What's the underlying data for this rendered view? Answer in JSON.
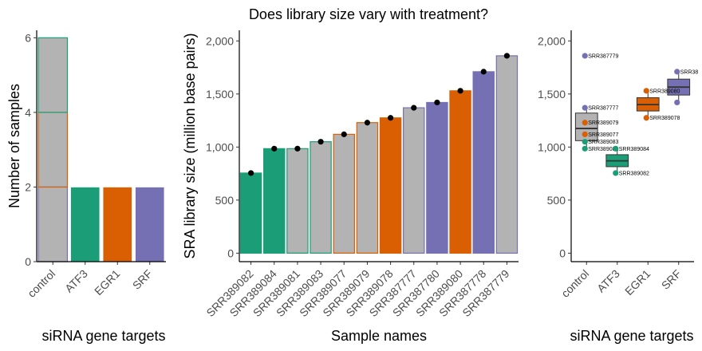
{
  "colors": {
    "control": "#b3b3b3",
    "ATF3": "#1b9e77",
    "EGR1": "#d95f02",
    "SRF": "#7570b3"
  },
  "chart_data": [
    {
      "type": "bar",
      "title": "",
      "xlabel": "siRNA gene targets",
      "ylabel": "Number of samples",
      "categories": [
        "control",
        "ATF3",
        "EGR1",
        "SRF"
      ],
      "values": [
        6,
        2,
        2,
        2
      ],
      "control_outline_segments": [
        {
          "from": 0,
          "to": 2,
          "outline": "SRF"
        },
        {
          "from": 2,
          "to": 4,
          "outline": "EGR1"
        },
        {
          "from": 4,
          "to": 6,
          "outline": "ATF3"
        }
      ],
      "ylim": [
        0,
        6.2
      ],
      "yticks": [
        0,
        2,
        4,
        6
      ],
      "grid": false,
      "legend": "none"
    },
    {
      "type": "bar",
      "title": "Does library size vary with treatment?",
      "xlabel": "Sample names",
      "ylabel": "SRA library size (million base pairs)",
      "categories": [
        "SRR389082",
        "SRR389084",
        "SRR389081",
        "SRR389083",
        "SRR389077",
        "SRR389079",
        "SRR389078",
        "SRR387777",
        "SRR387780",
        "SRR389080",
        "SRR387778",
        "SRR387779"
      ],
      "values": [
        755,
        985,
        985,
        1050,
        1120,
        1230,
        1275,
        1370,
        1420,
        1530,
        1710,
        1860
      ],
      "fill_group": [
        "ATF3",
        "ATF3",
        "control",
        "control",
        "control",
        "control",
        "EGR1",
        "control",
        "SRF",
        "EGR1",
        "SRF",
        "control"
      ],
      "outline_group": [
        "ATF3",
        "ATF3",
        "ATF3",
        "ATF3",
        "EGR1",
        "EGR1",
        "EGR1",
        "SRF",
        "SRF",
        "EGR1",
        "SRF",
        "SRF"
      ],
      "ylim": [
        -80,
        2100
      ],
      "yticks": [
        0,
        500,
        1000,
        1500,
        2000
      ],
      "ytick_labels": [
        "0",
        "500",
        "1,000",
        "1,500",
        "2,000"
      ],
      "grid": false,
      "legend": "none"
    },
    {
      "type": "box",
      "title": "",
      "xlabel": "siRNA gene targets",
      "ylabel": "",
      "categories": [
        "control",
        "ATF3",
        "EGR1",
        "SRF"
      ],
      "boxes": [
        {
          "group": "control",
          "q1": 1060,
          "median": 1175,
          "q3": 1320,
          "whisker_low": 985,
          "whisker_high": 1370
        },
        {
          "group": "ATF3",
          "q1": 815,
          "median": 870,
          "q3": 928,
          "whisker_low": 755,
          "whisker_high": 985
        },
        {
          "group": "EGR1",
          "q1": 1340,
          "median": 1400,
          "q3": 1465,
          "whisker_low": 1275,
          "whisker_high": 1530
        },
        {
          "group": "SRF",
          "q1": 1490,
          "median": 1565,
          "q3": 1640,
          "whisker_low": 1420,
          "whisker_high": 1710
        }
      ],
      "points": [
        {
          "group": "control",
          "y": 1860,
          "label": "SRR387779",
          "color": "SRF"
        },
        {
          "group": "control",
          "y": 1370,
          "label": "SRR387777",
          "color": "SRF"
        },
        {
          "group": "control",
          "y": 1230,
          "label": "SRR389079",
          "color": "EGR1"
        },
        {
          "group": "control",
          "y": 1120,
          "label": "SRR389077",
          "color": "EGR1"
        },
        {
          "group": "control",
          "y": 1050,
          "label": "SRR389083",
          "color": "ATF3"
        },
        {
          "group": "control",
          "y": 985,
          "label": "SRR389081",
          "color": "ATF3"
        },
        {
          "group": "ATF3",
          "y": 985,
          "label": "SRR389084",
          "color": "ATF3"
        },
        {
          "group": "ATF3",
          "y": 755,
          "label": "SRR389082",
          "color": "ATF3"
        },
        {
          "group": "EGR1",
          "y": 1530,
          "label": "SRR389080",
          "color": "EGR1"
        },
        {
          "group": "EGR1",
          "y": 1275,
          "label": "SRR389078",
          "color": "EGR1"
        },
        {
          "group": "SRF",
          "y": 1710,
          "label": "SRR38",
          "color": "SRF"
        },
        {
          "group": "SRF",
          "y": 1420,
          "label": "",
          "color": "SRF"
        }
      ],
      "ylim": [
        -80,
        2100
      ],
      "yticks": [
        0,
        500,
        1000,
        1500,
        2000
      ],
      "ytick_labels": [
        "0",
        "500",
        "1,000",
        "1,500",
        "2,000"
      ],
      "grid": false,
      "legend": "none"
    }
  ]
}
